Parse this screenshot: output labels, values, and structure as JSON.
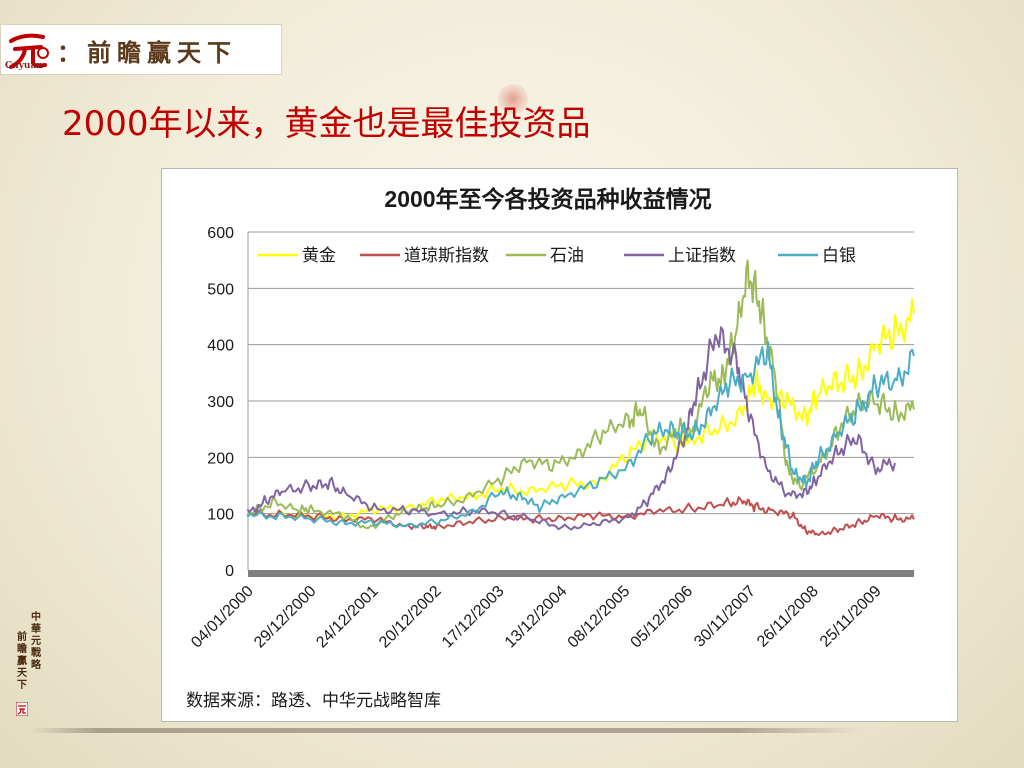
{
  "logo": {
    "mark_char": "元",
    "text": "：前瞻赢天下",
    "sub": "Cnyuan"
  },
  "slide_title": "2000年以来，黄金也是最佳投资品",
  "seal": {
    "col_right": "中華元戰略",
    "col_left": "前瞻贏天下",
    "mark_char": "元"
  },
  "chart_data": {
    "type": "line",
    "title": "2000年至今各投资品种收益情况",
    "source": "数据来源：路透、中华元战略智库",
    "ylim": [
      0,
      600
    ],
    "yticks": [
      0,
      100,
      200,
      300,
      400,
      500,
      600
    ],
    "x_range": [
      2000.01,
      2010.5
    ],
    "x_ticks": [
      {
        "label": "04/01/2000",
        "x": 2000.01
      },
      {
        "label": "29/12/2000",
        "x": 2001.0
      },
      {
        "label": "24/12/2001",
        "x": 2001.98
      },
      {
        "label": "20/12/2002",
        "x": 2002.97
      },
      {
        "label": "17/12/2003",
        "x": 2003.96
      },
      {
        "label": "13/12/2004",
        "x": 2004.95
      },
      {
        "label": "08/12/2005",
        "x": 2005.94
      },
      {
        "label": "05/12/2006",
        "x": 2006.93
      },
      {
        "label": "30/11/2007",
        "x": 2007.92
      },
      {
        "label": "26/11/2008",
        "x": 2008.91
      },
      {
        "label": "25/11/2009",
        "x": 2009.9
      }
    ],
    "grid": true,
    "legend": "top",
    "series": [
      {
        "name": "黄金",
        "color": "#ffff00",
        "x": [
          2000.0,
          2000.5,
          2001.0,
          2001.5,
          2002.0,
          2002.5,
          2003.0,
          2003.5,
          2004.0,
          2004.5,
          2005.0,
          2005.5,
          2006.0,
          2006.4,
          2006.8,
          2007.0,
          2007.4,
          2007.8,
          2008.0,
          2008.2,
          2008.5,
          2008.8,
          2009.0,
          2009.3,
          2009.6,
          2009.9,
          2010.2,
          2010.5
        ],
        "y": [
          100,
          98,
          95,
          97,
          105,
          112,
          122,
          130,
          145,
          140,
          150,
          158,
          200,
          245,
          220,
          235,
          250,
          280,
          330,
          310,
          295,
          275,
          310,
          335,
          345,
          395,
          420,
          455
        ]
      },
      {
        "name": "道琼斯指数",
        "color": "#c0504d",
        "x": [
          2000.0,
          2000.5,
          2001.0,
          2001.5,
          2002.0,
          2002.5,
          2002.8,
          2003.0,
          2003.5,
          2004.0,
          2004.5,
          2005.0,
          2005.5,
          2006.0,
          2006.5,
          2007.0,
          2007.5,
          2007.8,
          2008.0,
          2008.3,
          2008.6,
          2008.8,
          2009.0,
          2009.3,
          2009.6,
          2009.9,
          2010.2,
          2010.5
        ],
        "y": [
          100,
          98,
          95,
          92,
          88,
          80,
          75,
          78,
          85,
          92,
          90,
          94,
          95,
          97,
          103,
          110,
          118,
          122,
          112,
          105,
          95,
          70,
          62,
          72,
          83,
          95,
          92,
          90
        ]
      },
      {
        "name": "石油",
        "color": "#9bbb59",
        "x": [
          2000.0,
          2000.4,
          2000.8,
          2001.0,
          2001.5,
          2001.9,
          2002.3,
          2002.7,
          2003.0,
          2003.5,
          2004.0,
          2004.4,
          2004.8,
          2005.2,
          2005.6,
          2006.0,
          2006.2,
          2006.5,
          2006.8,
          2007.0,
          2007.3,
          2007.5,
          2007.7,
          2007.9,
          2008.1,
          2008.3,
          2008.5,
          2008.7,
          2009.0,
          2009.3,
          2009.6,
          2009.9,
          2010.2,
          2010.5
        ],
        "y": [
          100,
          120,
          105,
          110,
          95,
          75,
          95,
          110,
          115,
          130,
          160,
          200,
          180,
          210,
          240,
          265,
          285,
          210,
          250,
          250,
          330,
          350,
          420,
          530,
          460,
          350,
          180,
          150,
          185,
          250,
          290,
          300,
          280,
          285
        ]
      },
      {
        "name": "上证指数",
        "color": "#8064a2",
        "x": [
          2000.0,
          2000.3,
          2000.6,
          2001.0,
          2001.3,
          2001.6,
          2002.0,
          2002.5,
          2003.0,
          2003.5,
          2004.0,
          2004.5,
          2005.0,
          2005.5,
          2006.0,
          2006.3,
          2006.6,
          2006.9,
          2007.1,
          2007.4,
          2007.7,
          2007.9,
          2008.2,
          2008.5,
          2008.8,
          2009.0,
          2009.3,
          2009.6,
          2009.9,
          2010.2
        ],
        "y": [
          100,
          125,
          140,
          150,
          155,
          130,
          110,
          105,
          100,
          105,
          100,
          90,
          75,
          80,
          95,
          120,
          170,
          240,
          320,
          420,
          380,
          270,
          180,
          130,
          140,
          165,
          210,
          235,
          180,
          190
        ]
      },
      {
        "name": "白银",
        "color": "#4bacc6",
        "x": [
          2000.0,
          2000.5,
          2001.0,
          2001.5,
          2002.0,
          2002.5,
          2003.0,
          2003.5,
          2004.0,
          2004.3,
          2004.6,
          2005.0,
          2005.5,
          2006.0,
          2006.4,
          2006.7,
          2007.0,
          2007.3,
          2007.6,
          2007.9,
          2008.2,
          2008.4,
          2008.6,
          2008.8,
          2009.0,
          2009.3,
          2009.6,
          2009.9,
          2010.2,
          2010.5
        ],
        "y": [
          100,
          95,
          90,
          85,
          83,
          80,
          85,
          100,
          140,
          130,
          110,
          135,
          150,
          190,
          240,
          250,
          240,
          280,
          330,
          350,
          380,
          260,
          170,
          155,
          200,
          240,
          280,
          330,
          330,
          380
        ]
      }
    ]
  }
}
